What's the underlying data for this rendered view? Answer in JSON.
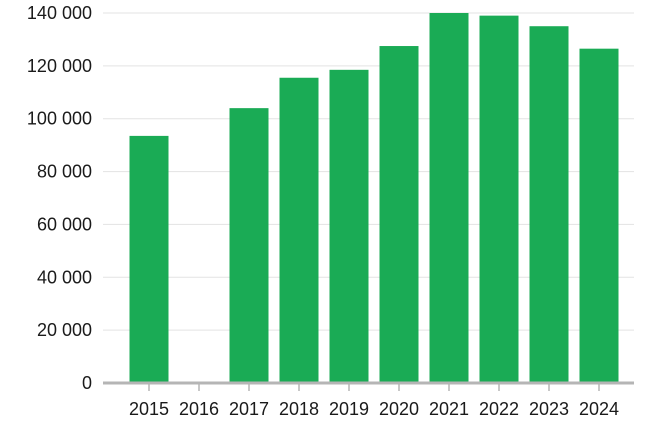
{
  "chart_data": {
    "type": "bar",
    "categories": [
      "2015",
      "2016",
      "2017",
      "2018",
      "2019",
      "2020",
      "2021",
      "2022",
      "2023",
      "2024"
    ],
    "values": [
      93500,
      null,
      104000,
      115500,
      118500,
      127500,
      140000,
      139000,
      135000,
      126500
    ],
    "title": "",
    "xlabel": "",
    "ylabel": "",
    "ylim": [
      0,
      140000
    ],
    "y_ticks": [
      0,
      20000,
      40000,
      60000,
      80000,
      100000,
      120000,
      140000
    ],
    "y_tick_labels": [
      "0",
      "20 000",
      "40 000",
      "60 000",
      "80 000",
      "100 000",
      "120 000",
      "140 000"
    ],
    "grid": true,
    "legend": "none",
    "bar_color": "#1aab55"
  }
}
